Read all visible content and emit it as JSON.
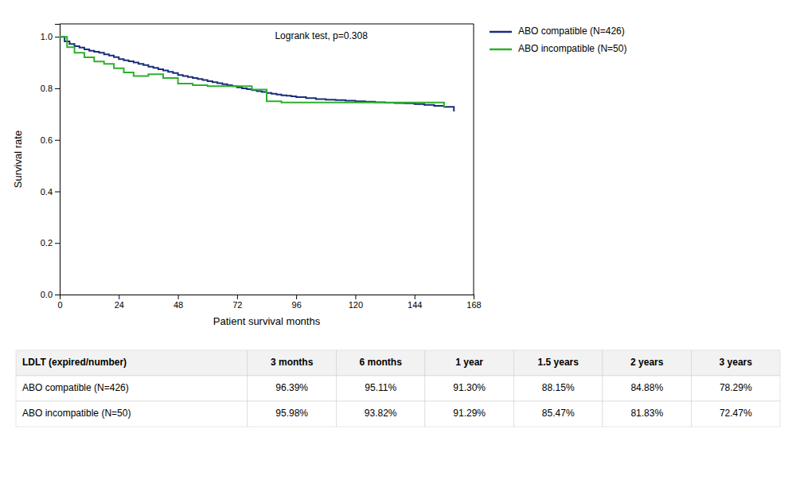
{
  "chart_data": {
    "type": "step",
    "xlabel": "Patient survival months",
    "ylabel": "Survival rate",
    "annotations": [
      {
        "text": "Logrank test, p=0.308"
      }
    ],
    "xlim": [
      0,
      168
    ],
    "ylim": [
      0.0,
      1.05
    ],
    "xticks": [
      0,
      24,
      48,
      72,
      96,
      120,
      144,
      168
    ],
    "yticks": [
      {
        "value": 0.0,
        "label": "0.0"
      },
      0.2,
      0.4,
      0.6,
      0.8,
      {
        "value": 1.0,
        "label": "1.0"
      }
    ],
    "grid": false,
    "legend": "right",
    "series": [
      {
        "name": "ABO compatible (N=426)",
        "color": "#1a2e7c",
        "x": [
          0,
          2,
          4,
          6,
          8,
          10,
          12,
          14,
          16,
          18,
          20,
          22,
          24,
          26,
          28,
          30,
          32,
          34,
          36,
          38,
          40,
          42,
          44,
          46,
          48,
          50,
          52,
          54,
          56,
          58,
          60,
          62,
          64,
          66,
          68,
          70,
          72,
          74,
          76,
          78,
          80,
          82,
          84,
          86,
          88,
          90,
          92,
          94,
          96,
          100,
          104,
          108,
          112,
          116,
          120,
          124,
          128,
          132,
          136,
          140,
          144,
          148,
          152,
          156,
          160
        ],
        "values": [
          1.0,
          0.982,
          0.972,
          0.9639,
          0.958,
          0.951,
          0.946,
          0.942,
          0.938,
          0.932,
          0.927,
          0.921,
          0.913,
          0.909,
          0.905,
          0.9,
          0.895,
          0.89,
          0.884,
          0.879,
          0.874,
          0.869,
          0.864,
          0.859,
          0.8515,
          0.848,
          0.844,
          0.84,
          0.836,
          0.832,
          0.828,
          0.824,
          0.82,
          0.816,
          0.812,
          0.808,
          0.804,
          0.8,
          0.797,
          0.793,
          0.789,
          0.786,
          0.782,
          0.779,
          0.776,
          0.773,
          0.771,
          0.769,
          0.766,
          0.762,
          0.758,
          0.756,
          0.754,
          0.752,
          0.75,
          0.748,
          0.746,
          0.744,
          0.743,
          0.742,
          0.739,
          0.736,
          0.732,
          0.728,
          0.71
        ]
      },
      {
        "name": "ABO incompatible (N=50)",
        "color": "#2db02d",
        "x": [
          0,
          3,
          6,
          10,
          14,
          18,
          22,
          26,
          30,
          36,
          42,
          48,
          54,
          60,
          66,
          72,
          78,
          84,
          90,
          96,
          108,
          120,
          132,
          144,
          156
        ],
        "values": [
          1.0,
          0.9598,
          0.9382,
          0.92,
          0.904,
          0.895,
          0.878,
          0.862,
          0.848,
          0.8547,
          0.84,
          0.8183,
          0.812,
          0.808,
          0.808,
          0.808,
          0.795,
          0.75,
          0.745,
          0.745,
          0.745,
          0.745,
          0.745,
          0.745,
          0.7247
        ]
      }
    ],
    "table": {
      "columns": [
        "LDLT (expired/number)",
        "3 months",
        "6 months",
        "1 year",
        "1.5 years",
        "2 years",
        "3 years"
      ],
      "rows": [
        [
          "ABO compatible (N=426)",
          "96.39%",
          "95.11%",
          "91.30%",
          "88.15%",
          "84.88%",
          "78.29%"
        ],
        [
          "ABO incompatible (N=50)",
          "95.98%",
          "93.82%",
          "91.29%",
          "85.47%",
          "81.83%",
          "72.47%"
        ]
      ]
    }
  }
}
